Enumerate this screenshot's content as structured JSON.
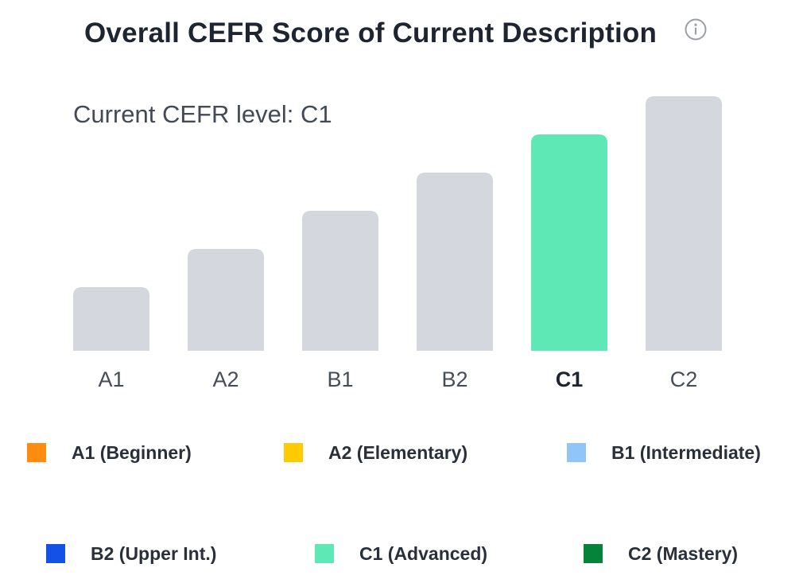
{
  "header": {
    "title": "Overall CEFR Score of Current Description",
    "info_icon": "info-circle-icon"
  },
  "current": {
    "label": "Current CEFR level: C1",
    "level": "C1"
  },
  "colors": {
    "bar_default": "#d4d7dd",
    "bar_highlight": "#5ee8b5",
    "tick_default": "#474d57",
    "tick_highlight": "#1f2530"
  },
  "chart_data": {
    "type": "bar",
    "categories": [
      "A1",
      "A2",
      "B1",
      "B2",
      "C1",
      "C2"
    ],
    "values": [
      1,
      2,
      3,
      4,
      5,
      6
    ],
    "highlight": "C1",
    "ylim": [
      0,
      6
    ],
    "grid": false,
    "title": "Overall CEFR Score of Current Description",
    "subtitle": "Current CEFR level: C1",
    "xlabel": "",
    "ylabel": ""
  },
  "legend": {
    "items": [
      {
        "label": "A1 (Beginner)",
        "color": "#ff8b0f"
      },
      {
        "label": "A2 (Elementary)",
        "color": "#fecb00"
      },
      {
        "label": "B1 (Intermediate)",
        "color": "#90c5fa"
      },
      {
        "label": "B2 (Upper Int.)",
        "color": "#1451e6"
      },
      {
        "label": "C1 (Advanced)",
        "color": "#5ee8b5"
      },
      {
        "label": "C2 (Mastery)",
        "color": "#06833a"
      }
    ]
  }
}
